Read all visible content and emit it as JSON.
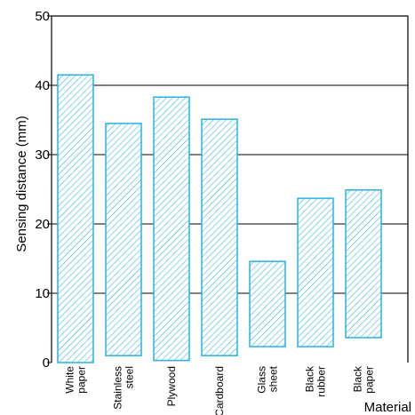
{
  "chart_data": {
    "type": "bar",
    "ylabel": "Sensing distance (mm)",
    "xlabel": "Material",
    "ylim": [
      0,
      50
    ],
    "yticks": [
      0,
      10,
      20,
      30,
      40,
      50
    ],
    "grid": "horizontal",
    "categories": [
      {
        "lines": [
          "White",
          "paper"
        ]
      },
      {
        "lines": [
          "Stainless",
          "steel"
        ]
      },
      {
        "lines": [
          "Plywood"
        ]
      },
      {
        "lines": [
          "Cardboard"
        ]
      },
      {
        "lines": [
          "Glass",
          "sheet"
        ]
      },
      {
        "lines": [
          "Black",
          "rubber"
        ]
      },
      {
        "lines": [
          "Black",
          "paper"
        ]
      }
    ],
    "ranges": [
      [
        0,
        41.5
      ],
      [
        1,
        34.5
      ],
      [
        0.3,
        38.3
      ],
      [
        1,
        35.1
      ],
      [
        2.3,
        14.6
      ],
      [
        2.3,
        23.7
      ],
      [
        3.6,
        24.9
      ]
    ],
    "colors": {
      "bar": "#29b1e3",
      "grid": "#000000"
    }
  }
}
